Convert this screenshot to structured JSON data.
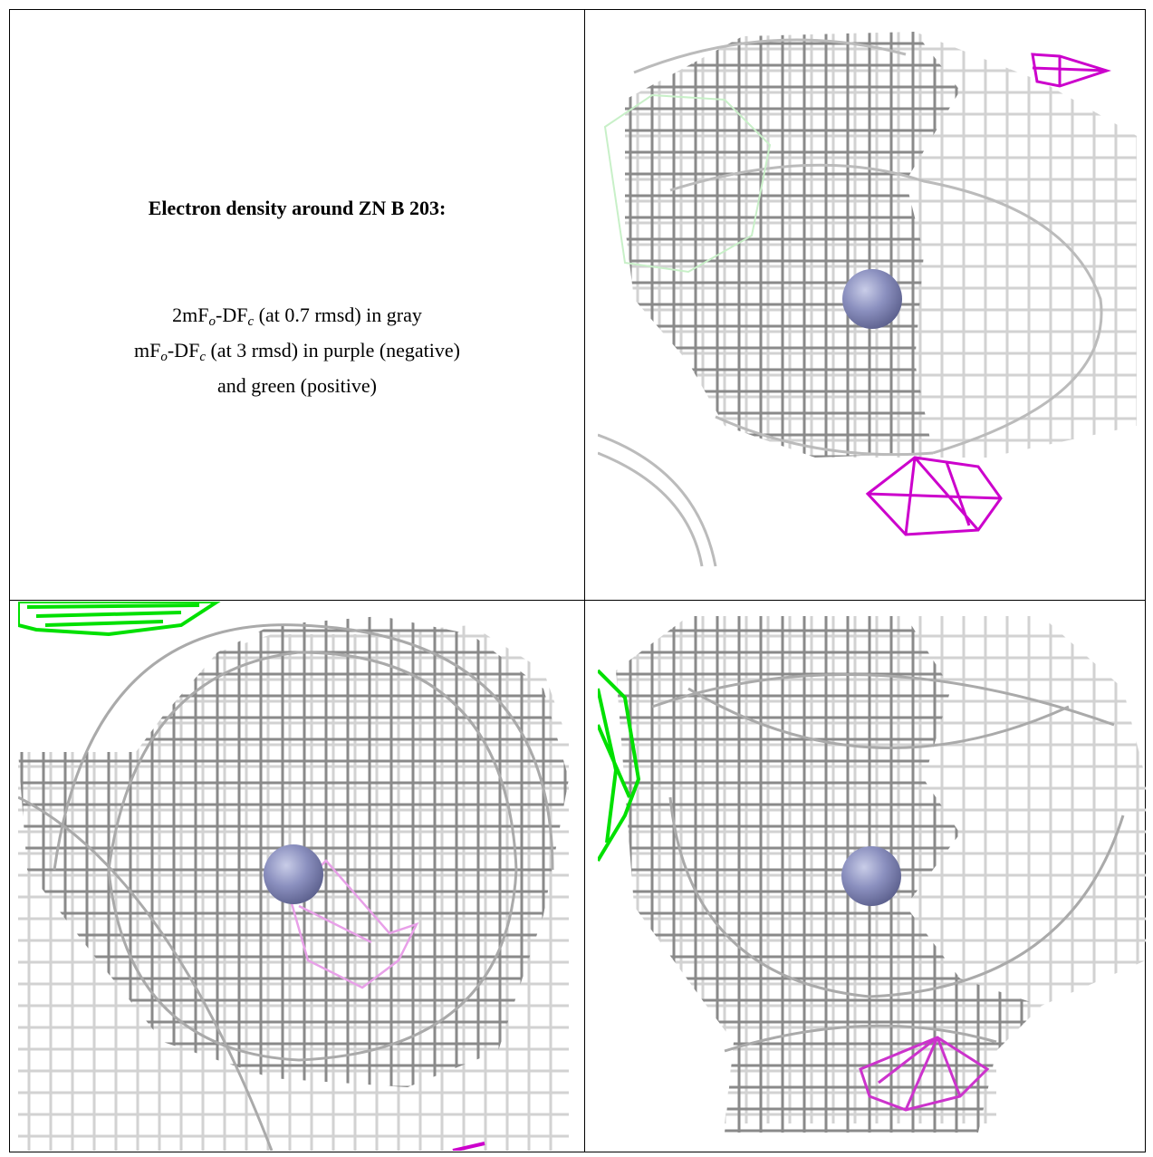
{
  "title": "Electron density around ZN B 203:",
  "legend_lines": [
    [
      "2mF",
      "o",
      "-DF",
      "c",
      " (at 0.7 rmsd) in gray"
    ],
    [
      "mF",
      "o",
      "-DF",
      "c",
      " (at 3 rmsd) in purple (negative)"
    ],
    [
      "and green (positive)"
    ]
  ]
}
